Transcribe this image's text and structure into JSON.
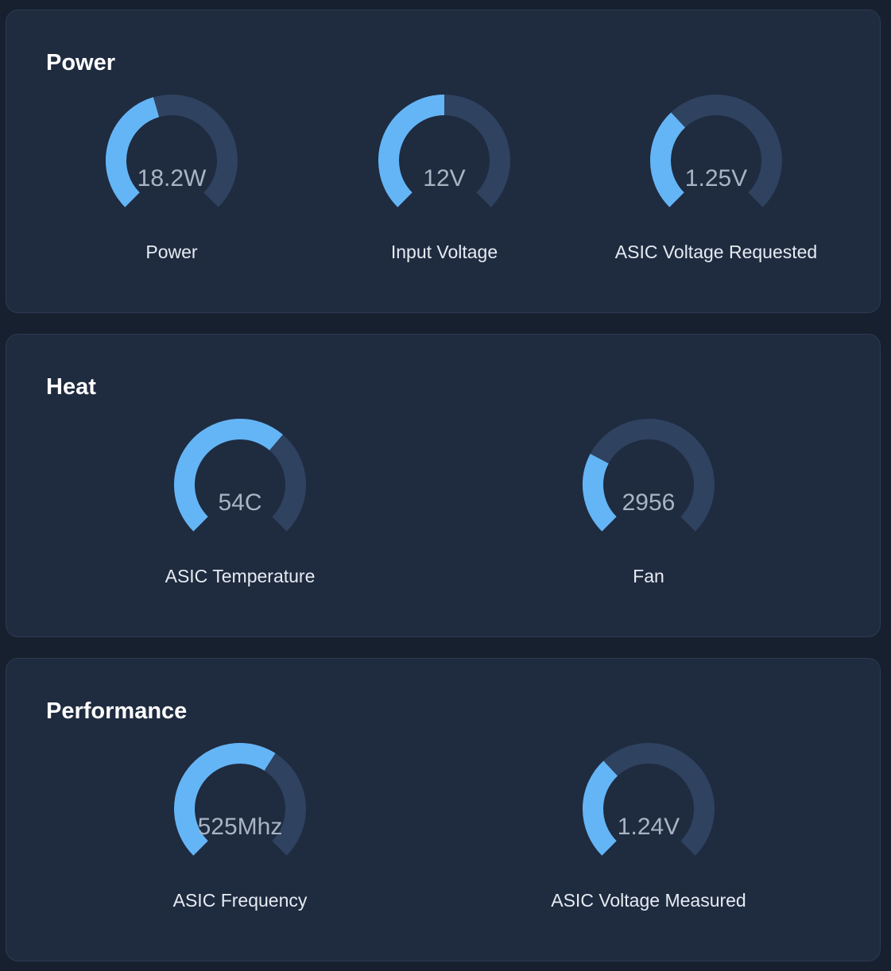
{
  "colors": {
    "track": "#2f425f",
    "fill": "#64b5f6",
    "panel": "#1f2b3f",
    "background": "#17202f"
  },
  "panels": [
    {
      "title": "Power",
      "gauges": [
        {
          "value": "18.2W",
          "label": "Power",
          "fraction": 0.44
        },
        {
          "value": "12V",
          "label": "Input Voltage",
          "fraction": 0.5
        },
        {
          "value": "1.25V",
          "label": "ASIC Voltage Requested",
          "fraction": 0.34
        }
      ]
    },
    {
      "title": "Heat",
      "gauges": [
        {
          "value": "54C",
          "label": "ASIC Temperature",
          "fraction": 0.65
        },
        {
          "value": "2956",
          "label": "Fan",
          "fraction": 0.27
        }
      ]
    },
    {
      "title": "Performance",
      "gauges": [
        {
          "value": "525Mhz",
          "label": "ASIC Frequency",
          "fraction": 0.62
        },
        {
          "value": "1.24V",
          "label": "ASIC Voltage Measured",
          "fraction": 0.34
        }
      ]
    }
  ]
}
